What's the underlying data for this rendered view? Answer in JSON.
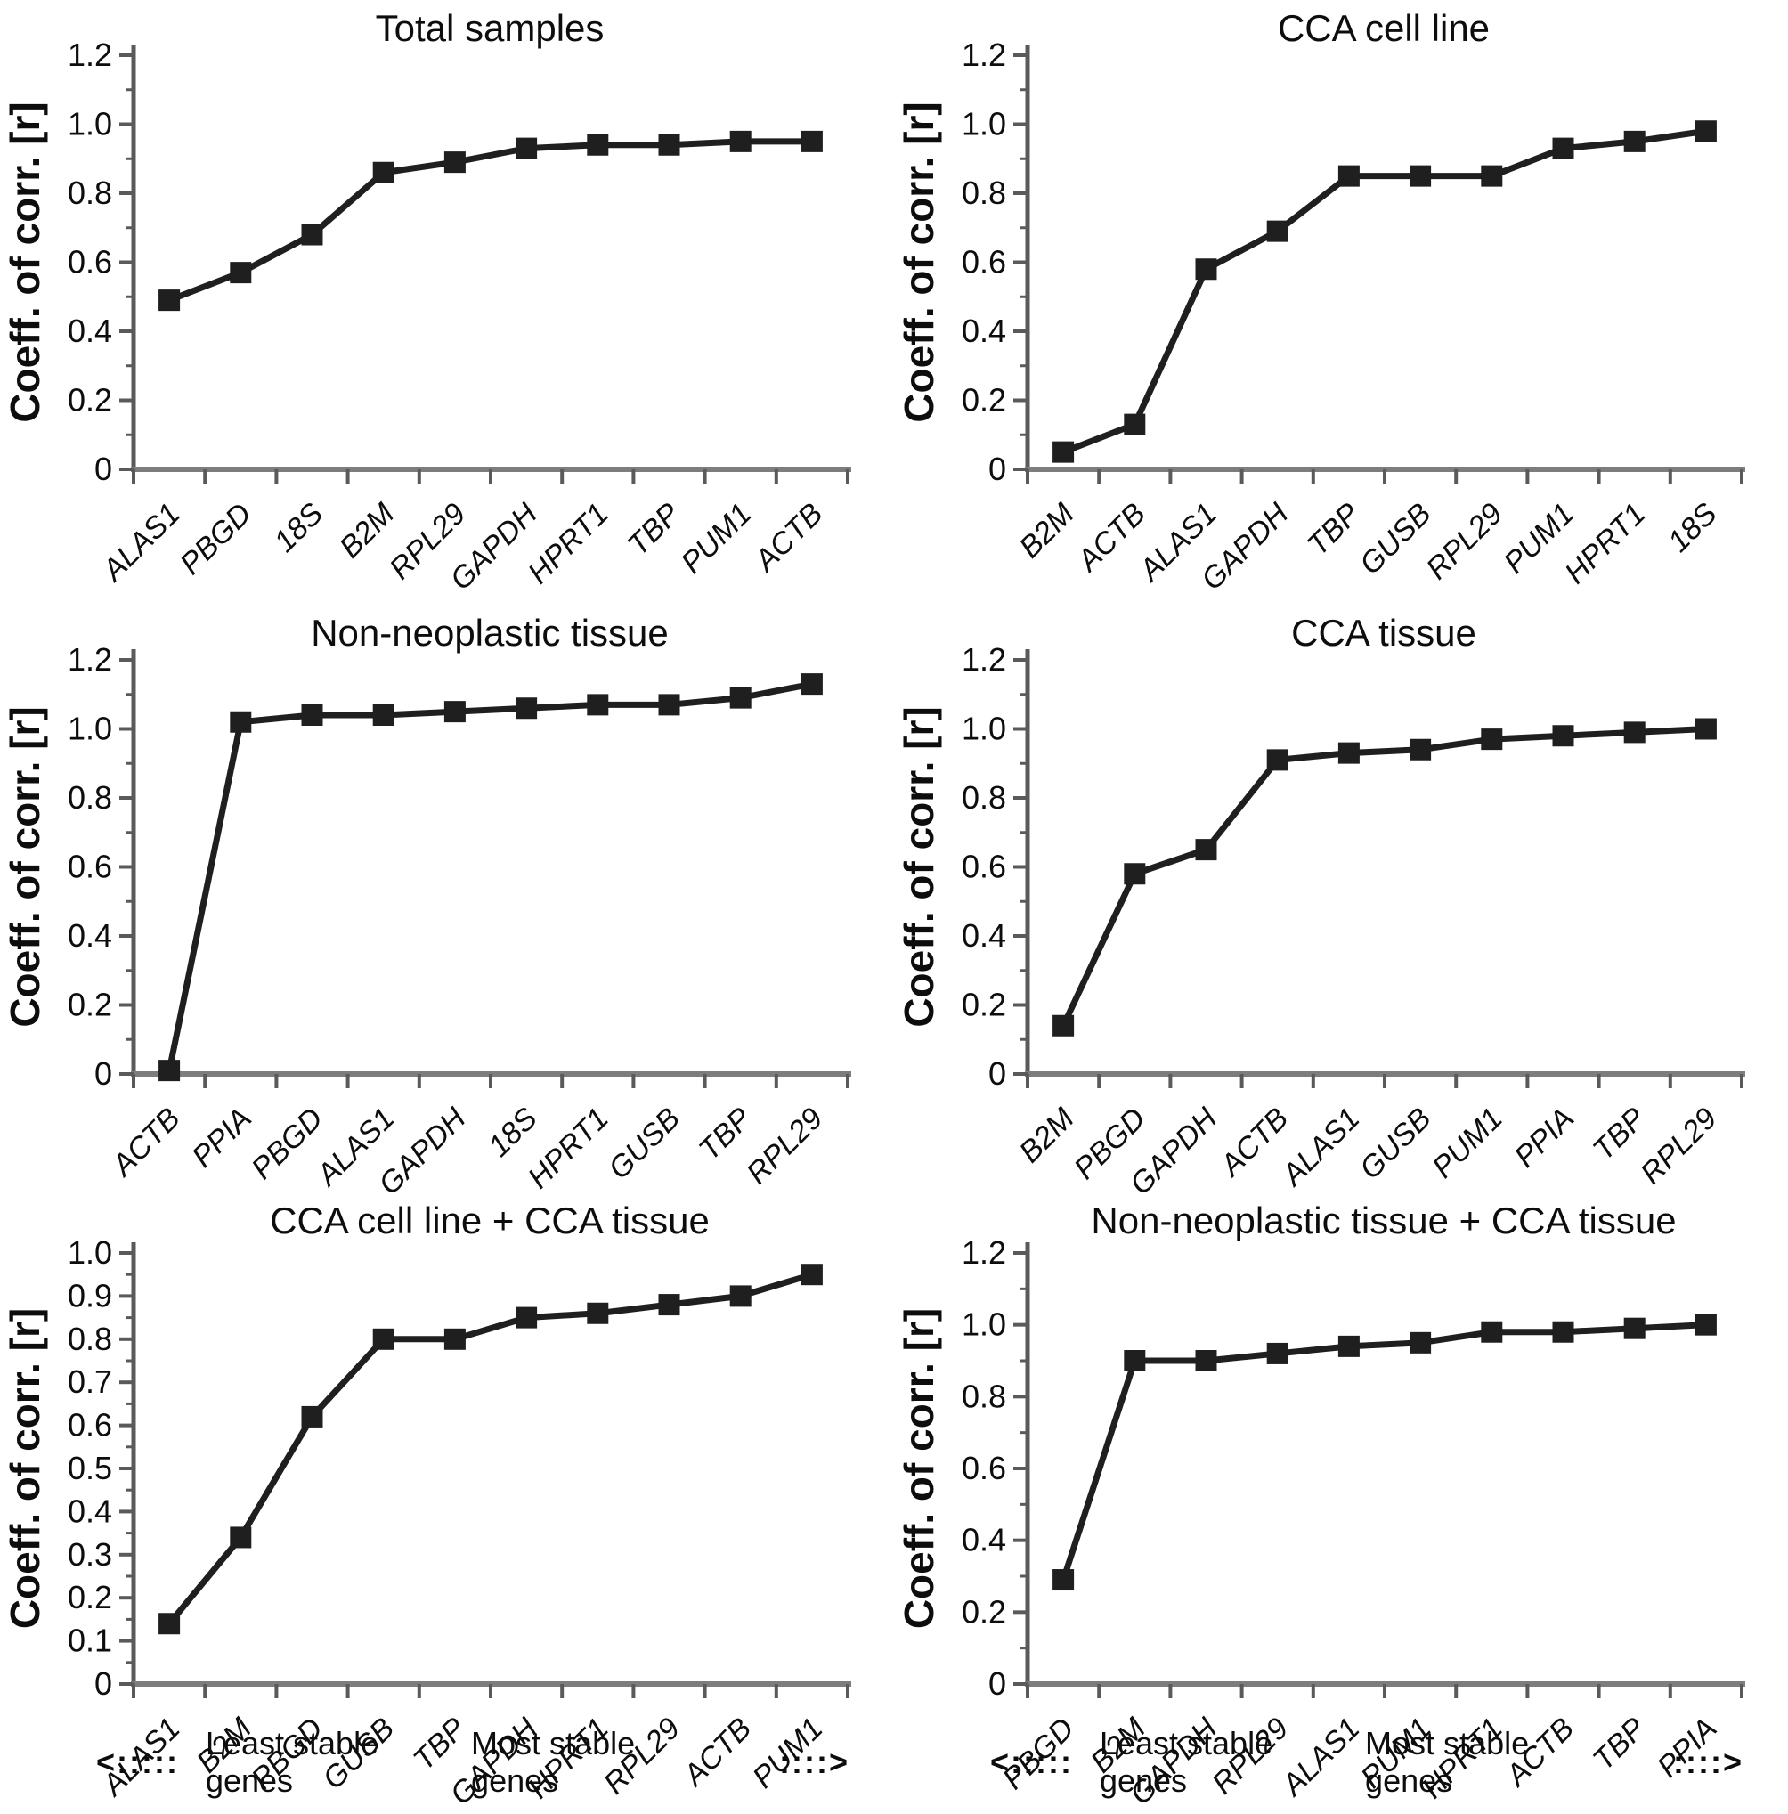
{
  "figure": {
    "background": "#ffffff",
    "line_color": "#1f1f1f",
    "marker_color": "#1f1f1f",
    "axis_color": "#5a5a5a"
  },
  "chart_data": [
    {
      "type": "line",
      "title": "Total samples",
      "ylabel": "Coeff. of corr. [r]",
      "ylim": [
        0,
        1.2
      ],
      "ytick_step": 0.2,
      "grid": false,
      "categories": [
        "ALAS1",
        "PBGD",
        "18S",
        "B2M",
        "RPL29",
        "GAPDH",
        "HPRT1",
        "TBP",
        "PUM1",
        "ACTB"
      ],
      "values": [
        0.49,
        0.57,
        0.68,
        0.86,
        0.89,
        0.93,
        0.94,
        0.94,
        0.95,
        0.95
      ]
    },
    {
      "type": "line",
      "title": "CCA cell line",
      "ylabel": "Coeff. of corr. [r]",
      "ylim": [
        0,
        1.2
      ],
      "ytick_step": 0.2,
      "grid": false,
      "categories": [
        "B2M",
        "ACTB",
        "ALAS1",
        "GAPDH",
        "TBP",
        "GUSB",
        "RPL29",
        "PUM1",
        "HPRT1",
        "18S"
      ],
      "values": [
        0.05,
        0.13,
        0.58,
        0.69,
        0.85,
        0.85,
        0.85,
        0.93,
        0.95,
        0.98
      ]
    },
    {
      "type": "line",
      "title": "Non-neoplastic tissue",
      "ylabel": "Coeff. of corr. [r]",
      "ylim": [
        0,
        1.2
      ],
      "ytick_step": 0.2,
      "grid": false,
      "categories": [
        "ACTB",
        "PPIA",
        "PBGD",
        "ALAS1",
        "GAPDH",
        "18S",
        "HPRT1",
        "GUSB",
        "TBP",
        "RPL29"
      ],
      "values": [
        0.01,
        1.02,
        1.04,
        1.04,
        1.05,
        1.06,
        1.07,
        1.07,
        1.09,
        1.13
      ]
    },
    {
      "type": "line",
      "title": "CCA tissue",
      "ylabel": "Coeff. of corr. [r]",
      "ylim": [
        0,
        1.2
      ],
      "ytick_step": 0.2,
      "grid": false,
      "categories": [
        "B2M",
        "PBGD",
        "GAPDH",
        "ACTB",
        "ALAS1",
        "GUSB",
        "PUM1",
        "PPIA",
        "TBP",
        "RPL29"
      ],
      "values": [
        0.14,
        0.58,
        0.65,
        0.91,
        0.93,
        0.94,
        0.97,
        0.98,
        0.99,
        1.0
      ]
    },
    {
      "type": "line",
      "title": "CCA cell line + CCA tissue",
      "ylabel": "Coeff. of corr. [r]",
      "ylim": [
        0,
        1.0
      ],
      "ytick_step": 0.1,
      "grid": false,
      "categories": [
        "ALAS1",
        "B2M",
        "PBGD",
        "GUSB",
        "TBP",
        "GAPDH",
        "HPRT1",
        "RPL29",
        "ACTB",
        "PUM1"
      ],
      "values": [
        0.14,
        0.34,
        0.62,
        0.8,
        0.8,
        0.85,
        0.86,
        0.88,
        0.9,
        0.95
      ]
    },
    {
      "type": "line",
      "title": "Non-neoplastic tissue + CCA tissue",
      "ylabel": "Coeff. of corr. [r]",
      "ylim": [
        0,
        1.2
      ],
      "ytick_step": 0.2,
      "grid": false,
      "categories": [
        "PBGD",
        "B2M",
        "GAPDH",
        "RPL29",
        "ALAS1",
        "PUM1",
        "HPRT1",
        "ACTB",
        "TBP",
        "PPIA"
      ],
      "values": [
        0.29,
        0.9,
        0.9,
        0.92,
        0.94,
        0.95,
        0.98,
        0.98,
        0.99,
        1.0
      ]
    }
  ],
  "footer": {
    "left_arrow": "<:::::",
    "least_label": "Least stable genes",
    "most_label": "Most stable genes",
    "right_arrow": "::::>"
  }
}
